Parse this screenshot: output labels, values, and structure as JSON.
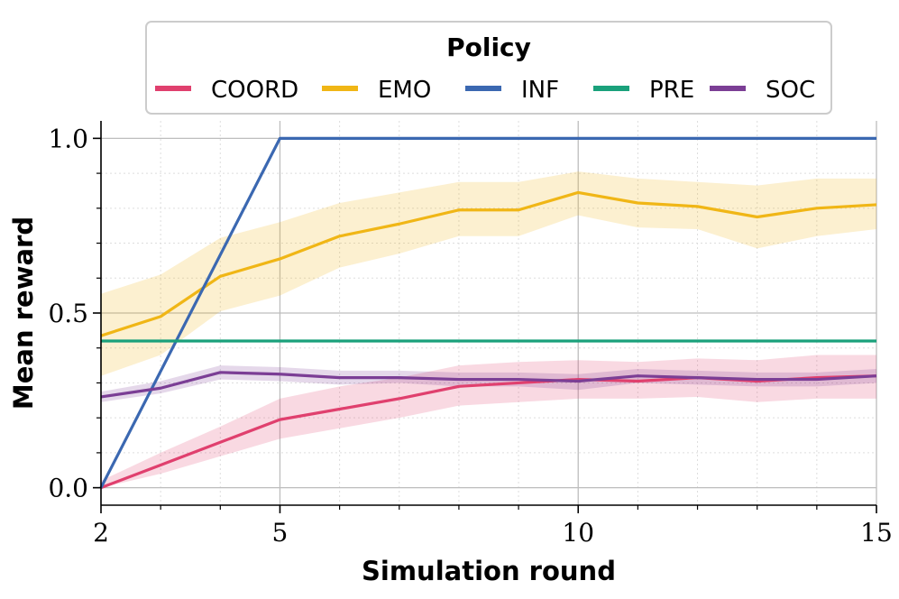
{
  "chart_data": {
    "type": "line",
    "title": "",
    "xlabel": "Simulation round",
    "ylabel": "Mean reward",
    "xlim": [
      2,
      15
    ],
    "ylim": [
      -0.05,
      1.05
    ],
    "x_ticks": [
      2,
      5,
      10,
      15
    ],
    "y_ticks": [
      0.0,
      0.5,
      1.0
    ],
    "x_tick_labels": [
      "2",
      "5",
      "10",
      "15"
    ],
    "y_tick_labels": [
      "0.0",
      "0.5",
      "1.0"
    ],
    "grid": true,
    "legend": {
      "title": "Policy",
      "placement": "top-center",
      "entries": [
        "COORD",
        "EMO",
        "INF",
        "PRE",
        "SOC"
      ]
    },
    "series": [
      {
        "name": "COORD",
        "color": "#e0406e",
        "x": [
          2,
          3,
          4,
          5,
          6,
          7,
          8,
          9,
          10,
          11,
          12,
          13,
          14,
          15
        ],
        "values": [
          0.0,
          0.065,
          0.13,
          0.195,
          0.225,
          0.255,
          0.29,
          0.3,
          0.31,
          0.305,
          0.315,
          0.305,
          0.315,
          0.32
        ],
        "lower": [
          0.0,
          0.04,
          0.09,
          0.14,
          0.17,
          0.2,
          0.235,
          0.245,
          0.255,
          0.255,
          0.26,
          0.245,
          0.255,
          0.255
        ],
        "upper": [
          0.02,
          0.1,
          0.175,
          0.255,
          0.29,
          0.315,
          0.35,
          0.36,
          0.365,
          0.36,
          0.37,
          0.365,
          0.38,
          0.38
        ]
      },
      {
        "name": "EMO",
        "color": "#f0b616",
        "x": [
          2,
          3,
          4,
          5,
          6,
          7,
          8,
          9,
          10,
          11,
          12,
          13,
          14,
          15
        ],
        "values": [
          0.435,
          0.49,
          0.605,
          0.655,
          0.72,
          0.755,
          0.795,
          0.795,
          0.845,
          0.815,
          0.805,
          0.775,
          0.8,
          0.81
        ],
        "lower": [
          0.32,
          0.38,
          0.505,
          0.55,
          0.63,
          0.67,
          0.72,
          0.72,
          0.78,
          0.745,
          0.74,
          0.685,
          0.72,
          0.74
        ],
        "upper": [
          0.555,
          0.61,
          0.715,
          0.76,
          0.815,
          0.845,
          0.875,
          0.875,
          0.905,
          0.885,
          0.875,
          0.865,
          0.885,
          0.885
        ]
      },
      {
        "name": "INF",
        "color": "#3b68b1",
        "x": [
          2,
          5,
          6,
          7,
          8,
          9,
          10,
          11,
          12,
          13,
          14,
          15
        ],
        "values": [
          0.0,
          1.0,
          1.0,
          1.0,
          1.0,
          1.0,
          1.0,
          1.0,
          1.0,
          1.0,
          1.0,
          1.0
        ]
      },
      {
        "name": "PRE",
        "color": "#1aa17b",
        "x": [
          2,
          15
        ],
        "values": [
          0.42,
          0.42
        ]
      },
      {
        "name": "SOC",
        "color": "#7b3e95",
        "x": [
          2,
          3,
          4,
          5,
          6,
          7,
          8,
          9,
          10,
          11,
          12,
          13,
          14,
          15
        ],
        "values": [
          0.26,
          0.285,
          0.33,
          0.325,
          0.315,
          0.315,
          0.31,
          0.31,
          0.305,
          0.32,
          0.315,
          0.31,
          0.31,
          0.32
        ],
        "lower": [
          0.245,
          0.27,
          0.31,
          0.305,
          0.295,
          0.3,
          0.29,
          0.29,
          0.28,
          0.3,
          0.295,
          0.29,
          0.29,
          0.3
        ],
        "upper": [
          0.275,
          0.305,
          0.35,
          0.345,
          0.335,
          0.335,
          0.33,
          0.33,
          0.325,
          0.34,
          0.335,
          0.33,
          0.33,
          0.34
        ]
      }
    ]
  }
}
